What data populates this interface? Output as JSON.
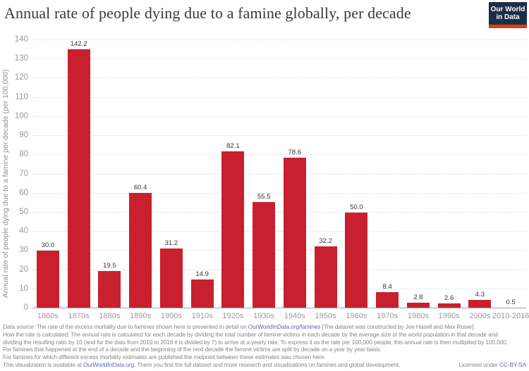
{
  "header": {
    "title": "Annual rate of people dying due to a famine globally, per decade",
    "logo": {
      "line1": "Our World",
      "line2": "in Data"
    }
  },
  "chart_data": {
    "type": "bar",
    "title": "Annual rate of people dying due to a famine globally, per decade",
    "categories": [
      "1860s",
      "1870s",
      "1880s",
      "1890s",
      "1900s",
      "1910s",
      "1920s",
      "1930s",
      "1940s",
      "1950s",
      "1960s",
      "1970s",
      "1980s",
      "1990s",
      "2000s",
      "2010-2016"
    ],
    "values": [
      30.0,
      142.2,
      19.5,
      60.4,
      31.2,
      14.9,
      82.1,
      55.5,
      78.6,
      32.2,
      50.0,
      8.4,
      2.8,
      2.6,
      4.3,
      0.5
    ],
    "xlabel": "",
    "ylabel": "Annual rate of people dying due to a famine per decade (per 100,000)",
    "ylim": [
      0,
      140
    ],
    "ytick_step": 10,
    "grid": "horizontal-dotted",
    "legend": "none",
    "bar_color": "#c8202e"
  },
  "footer": {
    "line1": {
      "pre": "Data source: The rate of the excess mortality due to famines shown here is presented in detail on ",
      "link": "OurWorldInData.org/famines",
      "post": " [The dataset was constructed by Joe Hasell and Max Roser]."
    },
    "line2": "How the rate is calculated: The annual rate is calculated for each decade by dividing the total number of famine victims in each decade by the average size of the world population in that decade and",
    "line3": "dividing the resulting ratio by 10 (and for the data from 2010 to 2016 it is divided by 7) to arrive at a yearly rate. To express it as the rate per 100,000 people, this annual rate is then multiplied by 100,000.",
    "line4": "For famines that happened at the end of a decade and the beginning of the next decade the famine victims are split by decade on a year by year basis.",
    "line5": "For famines for which different excess mortality estimates are published the midpoint between these estimates was chosen here.",
    "line6": {
      "pre": "This visualization is available at ",
      "link": "OurWorldInData.org.",
      "post": " There you find the full dataset and more research and visualizations on famines and global development."
    },
    "license": {
      "pre": "Licensed under ",
      "link": "CC-BY-SA"
    }
  }
}
